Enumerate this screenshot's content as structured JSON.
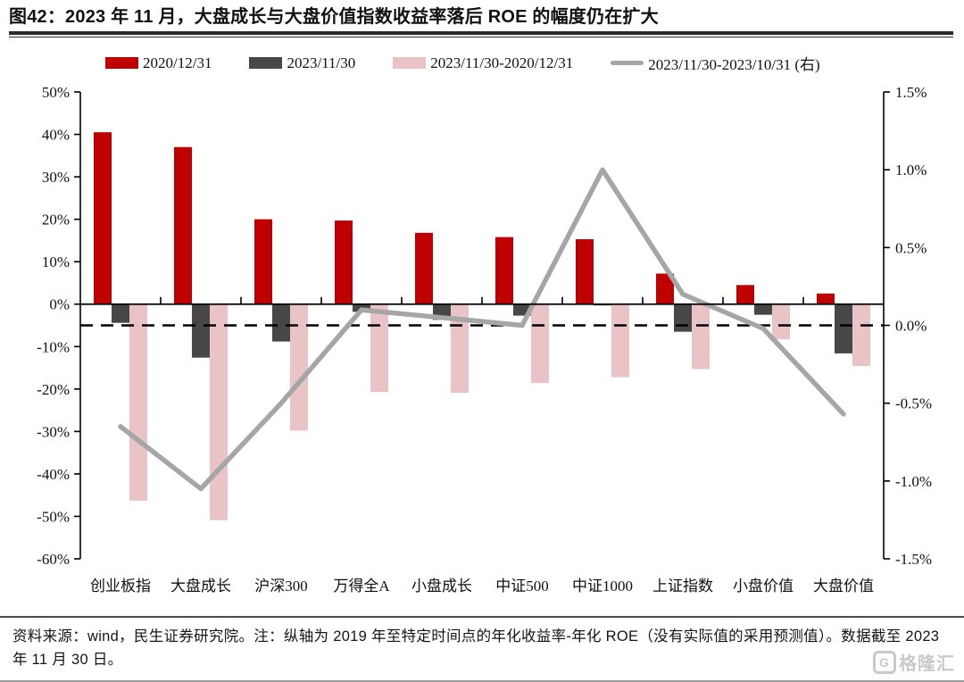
{
  "header": {
    "title": "图42：2023 年 11 月，大盘成长与大盘价值指数收益率落后 ROE 的幅度仍在扩大"
  },
  "legend": [
    {
      "label": "2020/12/31",
      "type": "bar",
      "color": "#C00000"
    },
    {
      "label": "2023/11/30",
      "type": "bar",
      "color": "#474747"
    },
    {
      "label": "2023/11/30-2020/12/31",
      "type": "bar",
      "color": "#EAC3C6"
    },
    {
      "label": "2023/11/30-2023/10/31 (右)",
      "type": "line",
      "color": "#A6A6A6"
    }
  ],
  "chart_data": {
    "type": "bar",
    "subtype": "grouped bars with overlay line on secondary axis",
    "categories": [
      "创业板指",
      "大盘成长",
      "沪深300",
      "万得全A",
      "小盘成长",
      "中证500",
      "中证1000",
      "上证指数",
      "小盘价值",
      "大盘价值"
    ],
    "series": [
      {
        "name": "2020/12/31",
        "type": "bar",
        "axis": "left",
        "color": "#C00000",
        "values": [
          40.5,
          37.0,
          20.0,
          19.7,
          16.8,
          15.8,
          15.3,
          7.2,
          4.5,
          2.5
        ]
      },
      {
        "name": "2023/11/30",
        "type": "bar",
        "axis": "left",
        "color": "#474747",
        "values": [
          -4.4,
          -12.6,
          -8.8,
          -1.8,
          -3.7,
          -2.7,
          -0.3,
          -6.5,
          -2.5,
          -11.6
        ]
      },
      {
        "name": "2023/11/30-2020/12/31",
        "type": "bar",
        "axis": "left",
        "color": "#EAC3C6",
        "values": [
          -46.3,
          -50.9,
          -29.8,
          -20.7,
          -20.9,
          -18.6,
          -17.2,
          -15.3,
          -8.3,
          -14.6
        ]
      },
      {
        "name": "2023/11/30-2023/10/31 (右)",
        "type": "line",
        "axis": "right",
        "color": "#A6A6A6",
        "values": [
          -0.65,
          -1.05,
          -0.5,
          0.1,
          0.05,
          0.0,
          1.0,
          0.2,
          -0.02,
          -0.57
        ]
      }
    ],
    "left_axis": {
      "min": -60,
      "max": 50,
      "ticks": [
        "50%",
        "40%",
        "30%",
        "20%",
        "10%",
        "0%",
        "-10%",
        "-20%",
        "-30%",
        "-40%",
        "-50%",
        "-60%"
      ]
    },
    "right_axis": {
      "min": -1.5,
      "max": 1.5,
      "ticks": [
        "1.5%",
        "1.0%",
        "0.5%",
        "0.0%",
        "-0.5%",
        "-1.0%",
        "-1.5%"
      ]
    },
    "dashed_reference_line": {
      "axis": "right",
      "value": 0.0,
      "style": "black dashed"
    },
    "grid": false,
    "legend_position": "top"
  },
  "footer": {
    "source_note": "资料来源：wind，民生证券研究院。注：纵轴为 2019 年至特定时间点的年化收益率-年化 ROE（没有实际值的采用预测值）。数据截至 2023 年 11 月 30 日。",
    "logo_text": "格隆汇",
    "logo_icon": "G"
  }
}
